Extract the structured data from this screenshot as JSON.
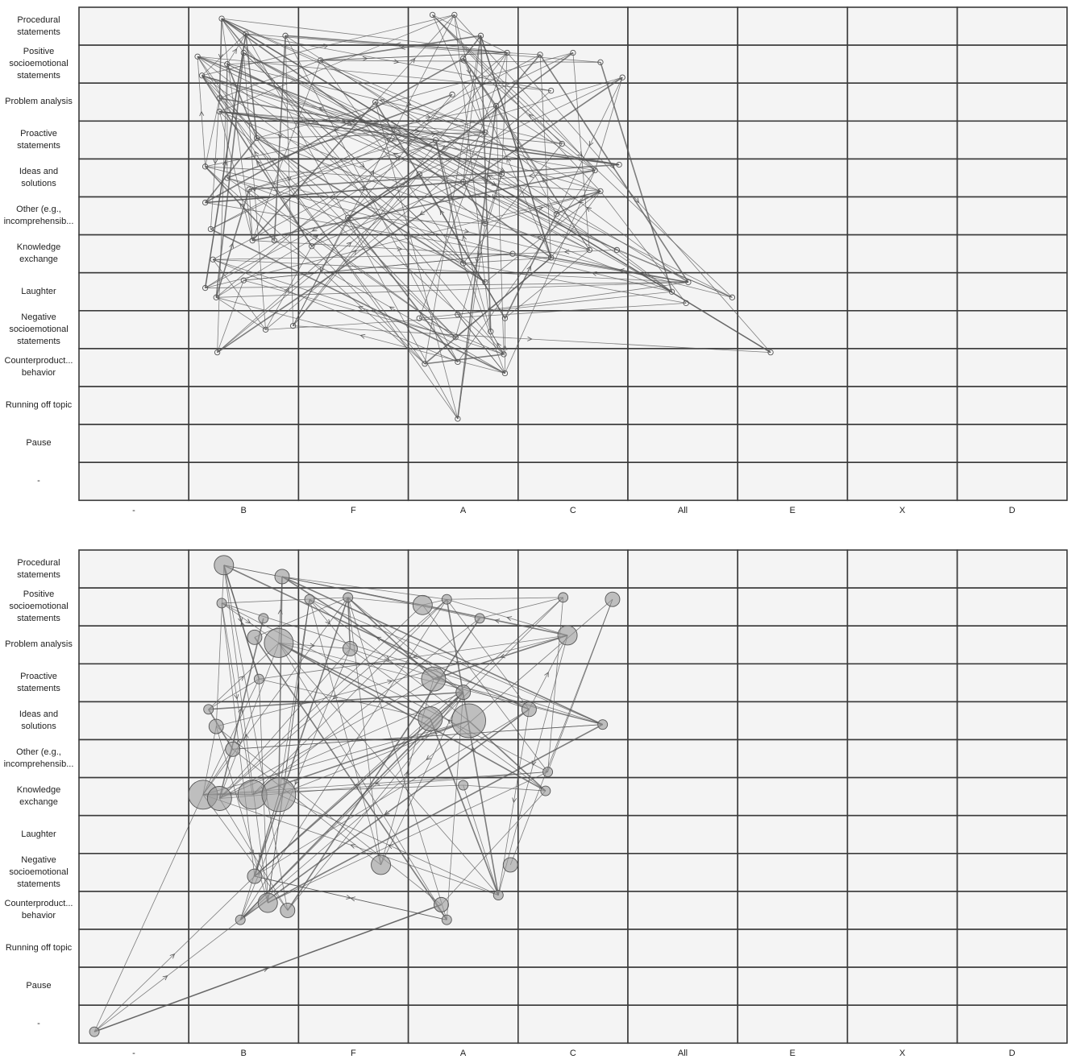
{
  "colors": {
    "cell_fill": "#f4f4f4",
    "grid": "#3a3a3a",
    "edge": "#555555",
    "node_fill": "#9a9a9a"
  },
  "axes": {
    "rows": [
      "Procedural\nstatements",
      "Positive\nsocioemotional\nstatements",
      "Problem analysis",
      "Proactive\nstatements",
      "Ideas and\nsolutions",
      "Other (e.g.,\nincomprehensib...",
      "Knowledge\nexchange",
      "Laughter",
      "Negative\nsocioemotional\nstatements",
      "Counterproduct...\nbehavior",
      "Running off topic",
      "Pause",
      "-"
    ],
    "columns": [
      "-",
      "B",
      "F",
      "A",
      "C",
      "All",
      "E",
      "X",
      "D"
    ]
  },
  "chart_data": [
    {
      "type": "scatter",
      "description_style": "transition network, small hollow nodes",
      "x_categories": [
        "-",
        "B",
        "F",
        "A",
        "C",
        "All",
        "E",
        "X",
        "D"
      ],
      "y_categories": [
        "Procedural statements",
        "Positive socioemotional statements",
        "Problem analysis",
        "Proactive statements",
        "Ideas and solutions",
        "Other (e.g., incomprehensib...",
        "Knowledge exchange",
        "Laughter",
        "Negative socioemotional statements",
        "Counterproduct... behavior",
        "Running off topic",
        "Pause",
        "-"
      ],
      "nodes": [
        {
          "x": "B",
          "y": "Procedural statements",
          "dx": 0.3,
          "dy": 0.3,
          "s": 1
        },
        {
          "x": "B",
          "y": "Procedural statements",
          "dx": 0.52,
          "dy": 0.7,
          "s": 1
        },
        {
          "x": "B",
          "y": "Procedural statements",
          "dx": 0.88,
          "dy": 0.75,
          "s": 1
        },
        {
          "x": "A",
          "y": "Procedural statements",
          "dx": 0.22,
          "dy": 0.2,
          "s": 1
        },
        {
          "x": "A",
          "y": "Procedural statements",
          "dx": 0.42,
          "dy": 0.2,
          "s": 1
        },
        {
          "x": "A",
          "y": "Procedural statements",
          "dx": 0.66,
          "dy": 0.75,
          "s": 1
        },
        {
          "x": "B",
          "y": "Positive socioemotional statements",
          "dx": 0.08,
          "dy": 0.3,
          "s": 1
        },
        {
          "x": "B",
          "y": "Positive socioemotional statements",
          "dx": 0.12,
          "dy": 0.8,
          "s": 1
        },
        {
          "x": "B",
          "y": "Positive socioemotional statements",
          "dx": 0.35,
          "dy": 0.5,
          "s": 1
        },
        {
          "x": "B",
          "y": "Positive socioemotional statements",
          "dx": 0.5,
          "dy": 0.2,
          "s": 1
        },
        {
          "x": "F",
          "y": "Positive socioemotional statements",
          "dx": 0.2,
          "dy": 0.4,
          "s": 1
        },
        {
          "x": "A",
          "y": "Positive socioemotional statements",
          "dx": 0.5,
          "dy": 0.35,
          "s": 1
        },
        {
          "x": "A",
          "y": "Positive socioemotional statements",
          "dx": 0.9,
          "dy": 0.2,
          "s": 1
        },
        {
          "x": "C",
          "y": "Positive socioemotional statements",
          "dx": 0.2,
          "dy": 0.25,
          "s": 1
        },
        {
          "x": "C",
          "y": "Positive socioemotional statements",
          "dx": 0.5,
          "dy": 0.2,
          "s": 1
        },
        {
          "x": "C",
          "y": "Positive socioemotional statements",
          "dx": 0.75,
          "dy": 0.45,
          "s": 1
        },
        {
          "x": "C",
          "y": "Positive socioemotional statements",
          "dx": 0.95,
          "dy": 0.85,
          "s": 1
        },
        {
          "x": "B",
          "y": "Problem analysis",
          "dx": 0.28,
          "dy": 0.4,
          "s": 1
        },
        {
          "x": "B",
          "y": "Problem analysis",
          "dx": 0.28,
          "dy": 0.75,
          "s": 1
        },
        {
          "x": "F",
          "y": "Problem analysis",
          "dx": 0.7,
          "dy": 0.5,
          "s": 1
        },
        {
          "x": "A",
          "y": "Problem analysis",
          "dx": 0.4,
          "dy": 0.3,
          "s": 1
        },
        {
          "x": "A",
          "y": "Problem analysis",
          "dx": 0.8,
          "dy": 0.6,
          "s": 1
        },
        {
          "x": "C",
          "y": "Problem analysis",
          "dx": 0.3,
          "dy": 0.2,
          "s": 1
        },
        {
          "x": "B",
          "y": "Proactive statements",
          "dx": 0.62,
          "dy": 0.45,
          "s": 1
        },
        {
          "x": "A",
          "y": "Proactive statements",
          "dx": 0.25,
          "dy": 0.5,
          "s": 1
        },
        {
          "x": "A",
          "y": "Proactive statements",
          "dx": 0.7,
          "dy": 0.3,
          "s": 1
        },
        {
          "x": "C",
          "y": "Proactive statements",
          "dx": 0.4,
          "dy": 0.6,
          "s": 1
        },
        {
          "x": "B",
          "y": "Ideas and solutions",
          "dx": 0.15,
          "dy": 0.2,
          "s": 1
        },
        {
          "x": "B",
          "y": "Ideas and solutions",
          "dx": 0.35,
          "dy": 0.5,
          "s": 1
        },
        {
          "x": "B",
          "y": "Ideas and solutions",
          "dx": 0.55,
          "dy": 0.8,
          "s": 1
        },
        {
          "x": "A",
          "y": "Ideas and solutions",
          "dx": 0.1,
          "dy": 0.4,
          "s": 1
        },
        {
          "x": "A",
          "y": "Ideas and solutions",
          "dx": 0.5,
          "dy": 0.6,
          "s": 1
        },
        {
          "x": "A",
          "y": "Ideas and solutions",
          "dx": 0.85,
          "dy": 0.4,
          "s": 1
        },
        {
          "x": "C",
          "y": "Ideas and solutions",
          "dx": 0.7,
          "dy": 0.3,
          "s": 1
        },
        {
          "x": "C",
          "y": "Ideas and solutions",
          "dx": 0.92,
          "dy": 0.15,
          "s": 1
        },
        {
          "x": "C",
          "y": "Ideas and solutions",
          "dx": 0.75,
          "dy": 0.85,
          "s": 1
        },
        {
          "x": "B",
          "y": "Other (e.g., incomprehensib...",
          "dx": 0.15,
          "dy": 0.15,
          "s": 1
        },
        {
          "x": "B",
          "y": "Other (e.g., incomprehensib...",
          "dx": 0.2,
          "dy": 0.85,
          "s": 1
        },
        {
          "x": "F",
          "y": "Other (e.g., incomprehensib...",
          "dx": 0.45,
          "dy": 0.55,
          "s": 1
        },
        {
          "x": "A",
          "y": "Other (e.g., incomprehensib...",
          "dx": 0.7,
          "dy": 0.7,
          "s": 1
        },
        {
          "x": "C",
          "y": "Other (e.g., incomprehensib...",
          "dx": 0.35,
          "dy": 0.45,
          "s": 1
        },
        {
          "x": "B",
          "y": "Knowledge exchange",
          "dx": 0.22,
          "dy": 0.65,
          "s": 1
        },
        {
          "x": "B",
          "y": "Knowledge exchange",
          "dx": 0.58,
          "dy": 0.15,
          "s": 1
        },
        {
          "x": "B",
          "y": "Knowledge exchange",
          "dx": 0.78,
          "dy": 0.15,
          "s": 1
        },
        {
          "x": "F",
          "y": "Knowledge exchange",
          "dx": 0.12,
          "dy": 0.3,
          "s": 1
        },
        {
          "x": "A",
          "y": "Knowledge exchange",
          "dx": 0.5,
          "dy": 0.75,
          "s": 1
        },
        {
          "x": "A",
          "y": "Knowledge exchange",
          "dx": 0.95,
          "dy": 0.5,
          "s": 1
        },
        {
          "x": "C",
          "y": "Knowledge exchange",
          "dx": 0.3,
          "dy": 0.6,
          "s": 1
        },
        {
          "x": "C",
          "y": "Knowledge exchange",
          "dx": 0.65,
          "dy": 0.4,
          "s": 1
        },
        {
          "x": "C",
          "y": "Knowledge exchange",
          "dx": 0.9,
          "dy": 0.4,
          "s": 1
        },
        {
          "x": "B",
          "y": "Laughter",
          "dx": 0.15,
          "dy": 0.4,
          "s": 1
        },
        {
          "x": "B",
          "y": "Laughter",
          "dx": 0.5,
          "dy": 0.2,
          "s": 1
        },
        {
          "x": "A",
          "y": "Laughter",
          "dx": 0.7,
          "dy": 0.25,
          "s": 1
        },
        {
          "x": "All",
          "y": "Laughter",
          "dx": 0.4,
          "dy": 0.5,
          "s": 1
        },
        {
          "x": "All",
          "y": "Laughter",
          "dx": 0.55,
          "dy": 0.25,
          "s": 1
        },
        {
          "x": "All",
          "y": "Laughter",
          "dx": 0.53,
          "dy": 0.8,
          "s": 1
        },
        {
          "x": "E",
          "y": "Laughter",
          "dx": -0.05,
          "dy": 0.65,
          "s": 1
        },
        {
          "x": "B",
          "y": "Negative socioemotional statements",
          "dx": 0.25,
          "dy": -0.35,
          "s": 1
        },
        {
          "x": "B",
          "y": "Negative socioemotional statements",
          "dx": 0.7,
          "dy": 0.5,
          "s": 1
        },
        {
          "x": "B",
          "y": "Negative socioemotional statements",
          "dx": 0.95,
          "dy": 0.4,
          "s": 1
        },
        {
          "x": "A",
          "y": "Negative socioemotional statements",
          "dx": 0.1,
          "dy": 0.2,
          "s": 1
        },
        {
          "x": "A",
          "y": "Negative socioemotional statements",
          "dx": 0.45,
          "dy": 0.1,
          "s": 1
        },
        {
          "x": "A",
          "y": "Negative socioemotional statements",
          "dx": 0.43,
          "dy": 0.7,
          "s": 1
        },
        {
          "x": "A",
          "y": "Negative socioemotional statements",
          "dx": 0.75,
          "dy": 0.55,
          "s": 1
        },
        {
          "x": "A",
          "y": "Negative socioemotional statements",
          "dx": 0.88,
          "dy": 0.2,
          "s": 1
        },
        {
          "x": "B",
          "y": "Counterproduct... behavior",
          "dx": 0.26,
          "dy": 0.1,
          "s": 1
        },
        {
          "x": "A",
          "y": "Counterproduct... behavior",
          "dx": 0.15,
          "dy": 0.4,
          "s": 1
        },
        {
          "x": "A",
          "y": "Counterproduct... behavior",
          "dx": 0.45,
          "dy": 0.35,
          "s": 1
        },
        {
          "x": "A",
          "y": "Counterproduct... behavior",
          "dx": 0.87,
          "dy": 0.15,
          "s": 1
        },
        {
          "x": "A",
          "y": "Counterproduct... behavior",
          "dx": 0.88,
          "dy": 0.65,
          "s": 1
        },
        {
          "x": "E",
          "y": "Counterproduct... behavior",
          "dx": 0.3,
          "dy": 0.1,
          "s": 1
        },
        {
          "x": "A",
          "y": "Running off topic",
          "dx": 0.45,
          "dy": 0.85,
          "s": 1
        }
      ]
    },
    {
      "type": "scatter",
      "description_style": "transition network, filled nodes sized by frequency",
      "x_categories": [
        "-",
        "B",
        "F",
        "A",
        "C",
        "All",
        "E",
        "X",
        "D"
      ],
      "y_categories": [
        "Procedural statements",
        "Positive socioemotional statements",
        "Problem analysis",
        "Proactive statements",
        "Ideas and solutions",
        "Other (e.g., incomprehensib...",
        "Knowledge exchange",
        "Laughter",
        "Negative socioemotional statements",
        "Counterproduct... behavior",
        "Running off topic",
        "Pause",
        "-"
      ],
      "nodes": [
        {
          "x": "B",
          "y": "Procedural statements",
          "dx": 0.32,
          "dy": 0.4,
          "s": 3
        },
        {
          "x": "B",
          "y": "Procedural statements",
          "dx": 0.85,
          "dy": 0.7,
          "s": 2
        },
        {
          "x": "B",
          "y": "Positive socioemotional statements",
          "dx": 0.3,
          "dy": 0.4,
          "s": 1
        },
        {
          "x": "B",
          "y": "Positive socioemotional statements",
          "dx": 0.68,
          "dy": 0.8,
          "s": 1
        },
        {
          "x": "F",
          "y": "Positive socioemotional statements",
          "dx": 0.1,
          "dy": 0.3,
          "s": 1
        },
        {
          "x": "F",
          "y": "Positive socioemotional statements",
          "dx": 0.45,
          "dy": 0.25,
          "s": 1
        },
        {
          "x": "A",
          "y": "Positive socioemotional statements",
          "dx": 0.13,
          "dy": 0.45,
          "s": 3
        },
        {
          "x": "A",
          "y": "Positive socioemotional statements",
          "dx": 0.35,
          "dy": 0.3,
          "s": 1
        },
        {
          "x": "A",
          "y": "Positive socioemotional statements",
          "dx": 0.65,
          "dy": 0.8,
          "s": 1
        },
        {
          "x": "C",
          "y": "Positive socioemotional statements",
          "dx": 0.41,
          "dy": 0.25,
          "s": 1
        },
        {
          "x": "C",
          "y": "Positive socioemotional statements",
          "dx": 0.86,
          "dy": 0.3,
          "s": 2
        },
        {
          "x": "B",
          "y": "Problem analysis",
          "dx": 0.6,
          "dy": 0.3,
          "s": 2
        },
        {
          "x": "B",
          "y": "Problem analysis",
          "dx": 0.82,
          "dy": 0.45,
          "s": 5
        },
        {
          "x": "F",
          "y": "Problem analysis",
          "dx": 0.47,
          "dy": 0.6,
          "s": 2
        },
        {
          "x": "C",
          "y": "Problem analysis",
          "dx": 0.45,
          "dy": 0.25,
          "s": 3
        },
        {
          "x": "A",
          "y": "Proactive statements",
          "dx": 0.23,
          "dy": 0.4,
          "s": 4
        },
        {
          "x": "A",
          "y": "Proactive statements",
          "dx": 0.5,
          "dy": 0.75,
          "s": 2
        },
        {
          "x": "B",
          "y": "Proactive statements",
          "dx": 0.64,
          "dy": 0.4,
          "s": 1
        },
        {
          "x": "B",
          "y": "Ideas and solutions",
          "dx": 0.18,
          "dy": 0.2,
          "s": 1
        },
        {
          "x": "B",
          "y": "Ideas and solutions",
          "dx": 0.25,
          "dy": 0.65,
          "s": 2
        },
        {
          "x": "A",
          "y": "Ideas and solutions",
          "dx": 0.2,
          "dy": 0.45,
          "s": 4
        },
        {
          "x": "A",
          "y": "Ideas and solutions",
          "dx": 0.55,
          "dy": 0.5,
          "s": 6
        },
        {
          "x": "C",
          "y": "Ideas and solutions",
          "dx": 0.1,
          "dy": 0.2,
          "s": 2
        },
        {
          "x": "C",
          "y": "Ideas and solutions",
          "dx": 0.77,
          "dy": 0.6,
          "s": 1
        },
        {
          "x": "B",
          "y": "Other (e.g., incomprehensib...",
          "dx": 0.4,
          "dy": 0.25,
          "s": 2
        },
        {
          "x": "C",
          "y": "Other (e.g., incomprehensib...",
          "dx": 0.27,
          "dy": 0.85,
          "s": 1
        },
        {
          "x": "B",
          "y": "Knowledge exchange",
          "dx": 0.13,
          "dy": 0.45,
          "s": 5
        },
        {
          "x": "B",
          "y": "Knowledge exchange",
          "dx": 0.28,
          "dy": 0.55,
          "s": 4
        },
        {
          "x": "B",
          "y": "Knowledge exchange",
          "dx": 0.58,
          "dy": 0.45,
          "s": 5
        },
        {
          "x": "B",
          "y": "Knowledge exchange",
          "dx": 0.82,
          "dy": 0.45,
          "s": 6
        },
        {
          "x": "A",
          "y": "Knowledge exchange",
          "dx": 0.5,
          "dy": 0.2,
          "s": 1
        },
        {
          "x": "C",
          "y": "Knowledge exchange",
          "dx": 0.25,
          "dy": 0.35,
          "s": 1
        },
        {
          "x": "B",
          "y": "Negative socioemotional statements",
          "dx": 0.6,
          "dy": 0.6,
          "s": 2
        },
        {
          "x": "F",
          "y": "Negative socioemotional statements",
          "dx": 0.75,
          "dy": 0.3,
          "s": 3
        },
        {
          "x": "C",
          "y": "Negative socioemotional statements",
          "dx": -0.07,
          "dy": 0.3,
          "s": 2
        },
        {
          "x": "B",
          "y": "Counterproduct... behavior",
          "dx": 0.72,
          "dy": 0.3,
          "s": 3
        },
        {
          "x": "B",
          "y": "Counterproduct... behavior",
          "dx": 0.9,
          "dy": 0.5,
          "s": 2
        },
        {
          "x": "B",
          "y": "Counterproduct... behavior",
          "dx": 0.47,
          "dy": 0.75,
          "s": 1
        },
        {
          "x": "A",
          "y": "Counterproduct... behavior",
          "dx": 0.3,
          "dy": 0.35,
          "s": 2
        },
        {
          "x": "A",
          "y": "Counterproduct... behavior",
          "dx": 0.35,
          "dy": 0.75,
          "s": 1
        },
        {
          "x": "A",
          "y": "Counterproduct... behavior",
          "dx": 0.82,
          "dy": 0.1,
          "s": 1
        },
        {
          "x": "-",
          "y": "-",
          "dx": 0.14,
          "dy": 0.7,
          "s": 1
        }
      ]
    }
  ]
}
